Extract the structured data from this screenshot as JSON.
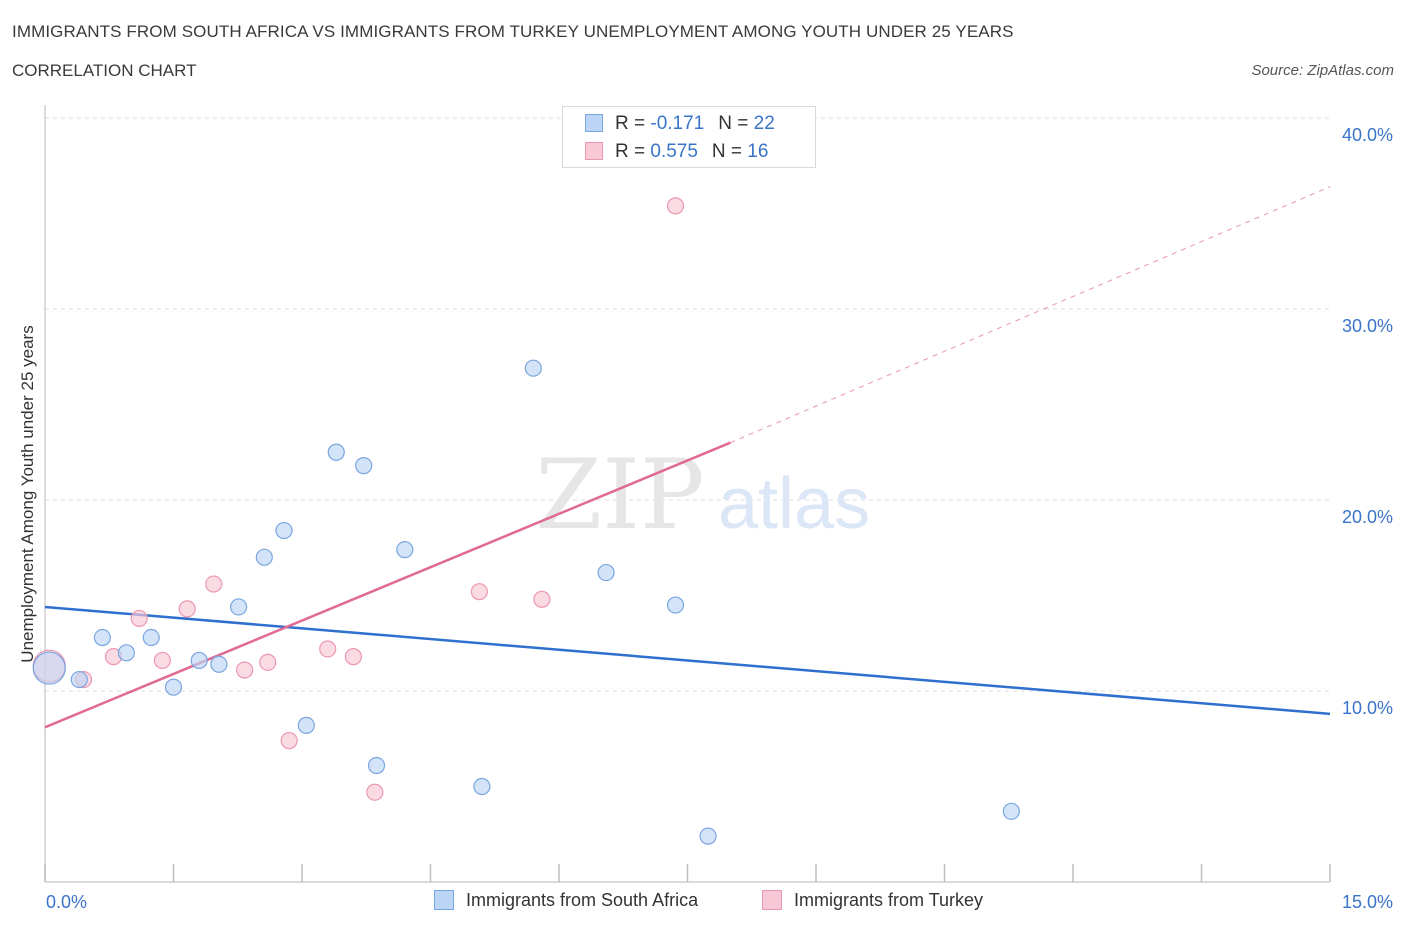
{
  "header": {
    "title": "IMMIGRANTS FROM SOUTH AFRICA VS IMMIGRANTS FROM TURKEY UNEMPLOYMENT AMONG YOUTH UNDER 25 YEARS",
    "subtitle": "CORRELATION CHART",
    "source": "Source: ZipAtlas.com"
  },
  "watermark": {
    "zip": "ZIP",
    "atlas": "atlas"
  },
  "colors": {
    "blue_fill": "#bcd4f5",
    "blue_stroke": "#7aa6e0",
    "blue_line": "#2f6fce",
    "pink_fill": "#f8c8d6",
    "pink_stroke": "#ec97b0",
    "pink_line": "#e06a92",
    "axis_text": "#3a74c9",
    "grid": "#dcdcdc"
  },
  "legend": {
    "rows": [
      {
        "r_label": "R = ",
        "r_value": "-0.171",
        "n_label": "N = ",
        "n_value": "22"
      },
      {
        "r_label": "R = ",
        "r_value": "0.575",
        "n_label": "N = ",
        "n_value": "16"
      }
    ]
  },
  "chart_data": {
    "type": "scatter",
    "title": "IMMIGRANTS FROM SOUTH AFRICA VS IMMIGRANTS FROM TURKEY UNEMPLOYMENT AMONG YOUTH UNDER 25 YEARS",
    "xlabel": "",
    "ylabel": "Unemployment Among Youth under 25 years",
    "xlim": [
      0,
      15
    ],
    "ylim": [
      0,
      40
    ],
    "x_tick_labels": {
      "min": "0.0%",
      "max": "15.0%"
    },
    "y_ticks": [
      {
        "value": 10,
        "label": "10.0%"
      },
      {
        "value": 20,
        "label": "20.0%"
      },
      {
        "value": 30,
        "label": "30.0%"
      },
      {
        "value": 40,
        "label": "40.0%"
      }
    ],
    "series": [
      {
        "name": "Immigrants from South Africa",
        "color": "blue",
        "points": [
          [
            0.05,
            11.2
          ],
          [
            0.4,
            10.6
          ],
          [
            0.67,
            12.8
          ],
          [
            0.95,
            12.0
          ],
          [
            1.24,
            12.8
          ],
          [
            1.5,
            10.2
          ],
          [
            1.8,
            11.6
          ],
          [
            2.03,
            11.4
          ],
          [
            2.26,
            14.4
          ],
          [
            2.56,
            17.0
          ],
          [
            2.79,
            18.4
          ],
          [
            3.05,
            8.2
          ],
          [
            3.4,
            22.5
          ],
          [
            3.72,
            21.8
          ],
          [
            3.87,
            6.1
          ],
          [
            4.2,
            17.4
          ],
          [
            5.1,
            5.0
          ],
          [
            5.7,
            26.9
          ],
          [
            6.55,
            16.2
          ],
          [
            7.36,
            14.5
          ],
          [
            7.74,
            2.4
          ],
          [
            11.28,
            3.7
          ]
        ],
        "trend": {
          "x0": 0,
          "y0": 14.4,
          "x1": 15,
          "y1": 8.8
        }
      },
      {
        "name": "Immigrants from Turkey",
        "color": "pink",
        "points": [
          [
            0.05,
            11.3
          ],
          [
            0.45,
            10.6
          ],
          [
            0.8,
            11.8
          ],
          [
            1.1,
            13.8
          ],
          [
            1.37,
            11.6
          ],
          [
            1.66,
            14.3
          ],
          [
            1.97,
            15.6
          ],
          [
            2.33,
            11.1
          ],
          [
            2.6,
            11.5
          ],
          [
            2.85,
            7.4
          ],
          [
            3.3,
            12.2
          ],
          [
            3.6,
            11.8
          ],
          [
            3.85,
            4.7
          ],
          [
            5.07,
            15.2
          ],
          [
            5.8,
            14.8
          ],
          [
            7.36,
            35.4
          ]
        ],
        "trend": {
          "x0": 0,
          "y0": 8.1,
          "x1": 8.0,
          "y1": 23.0,
          "dash_to_x": 15,
          "dash_to_y": 36.4
        }
      }
    ]
  }
}
